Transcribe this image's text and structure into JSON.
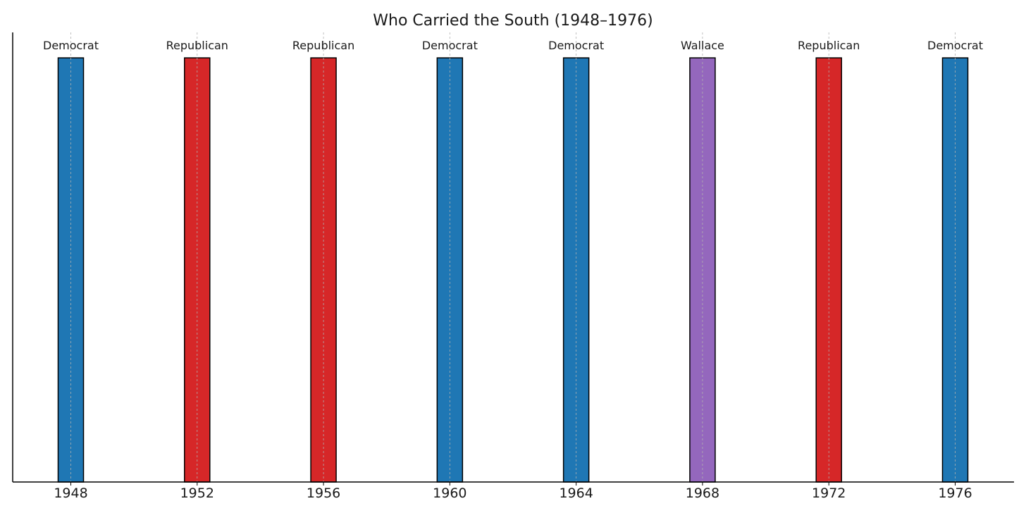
{
  "chart_data": {
    "type": "bar",
    "title": "Who Carried the South (1948–1976)",
    "xlabel": "",
    "ylabel": "",
    "categories": [
      "1948",
      "1952",
      "1956",
      "1960",
      "1964",
      "1968",
      "1972",
      "1976"
    ],
    "values": [
      1,
      1,
      1,
      1,
      1,
      1,
      1,
      1
    ],
    "labels": [
      "Democrat",
      "Republican",
      "Republican",
      "Democrat",
      "Democrat",
      "Wallace",
      "Republican",
      "Democrat"
    ],
    "ylim": [
      0,
      1.06
    ],
    "grid": "x",
    "colors": {
      "Democrat": "#1f77b4",
      "Republican": "#d62728",
      "Wallace": "#9467bd"
    }
  }
}
